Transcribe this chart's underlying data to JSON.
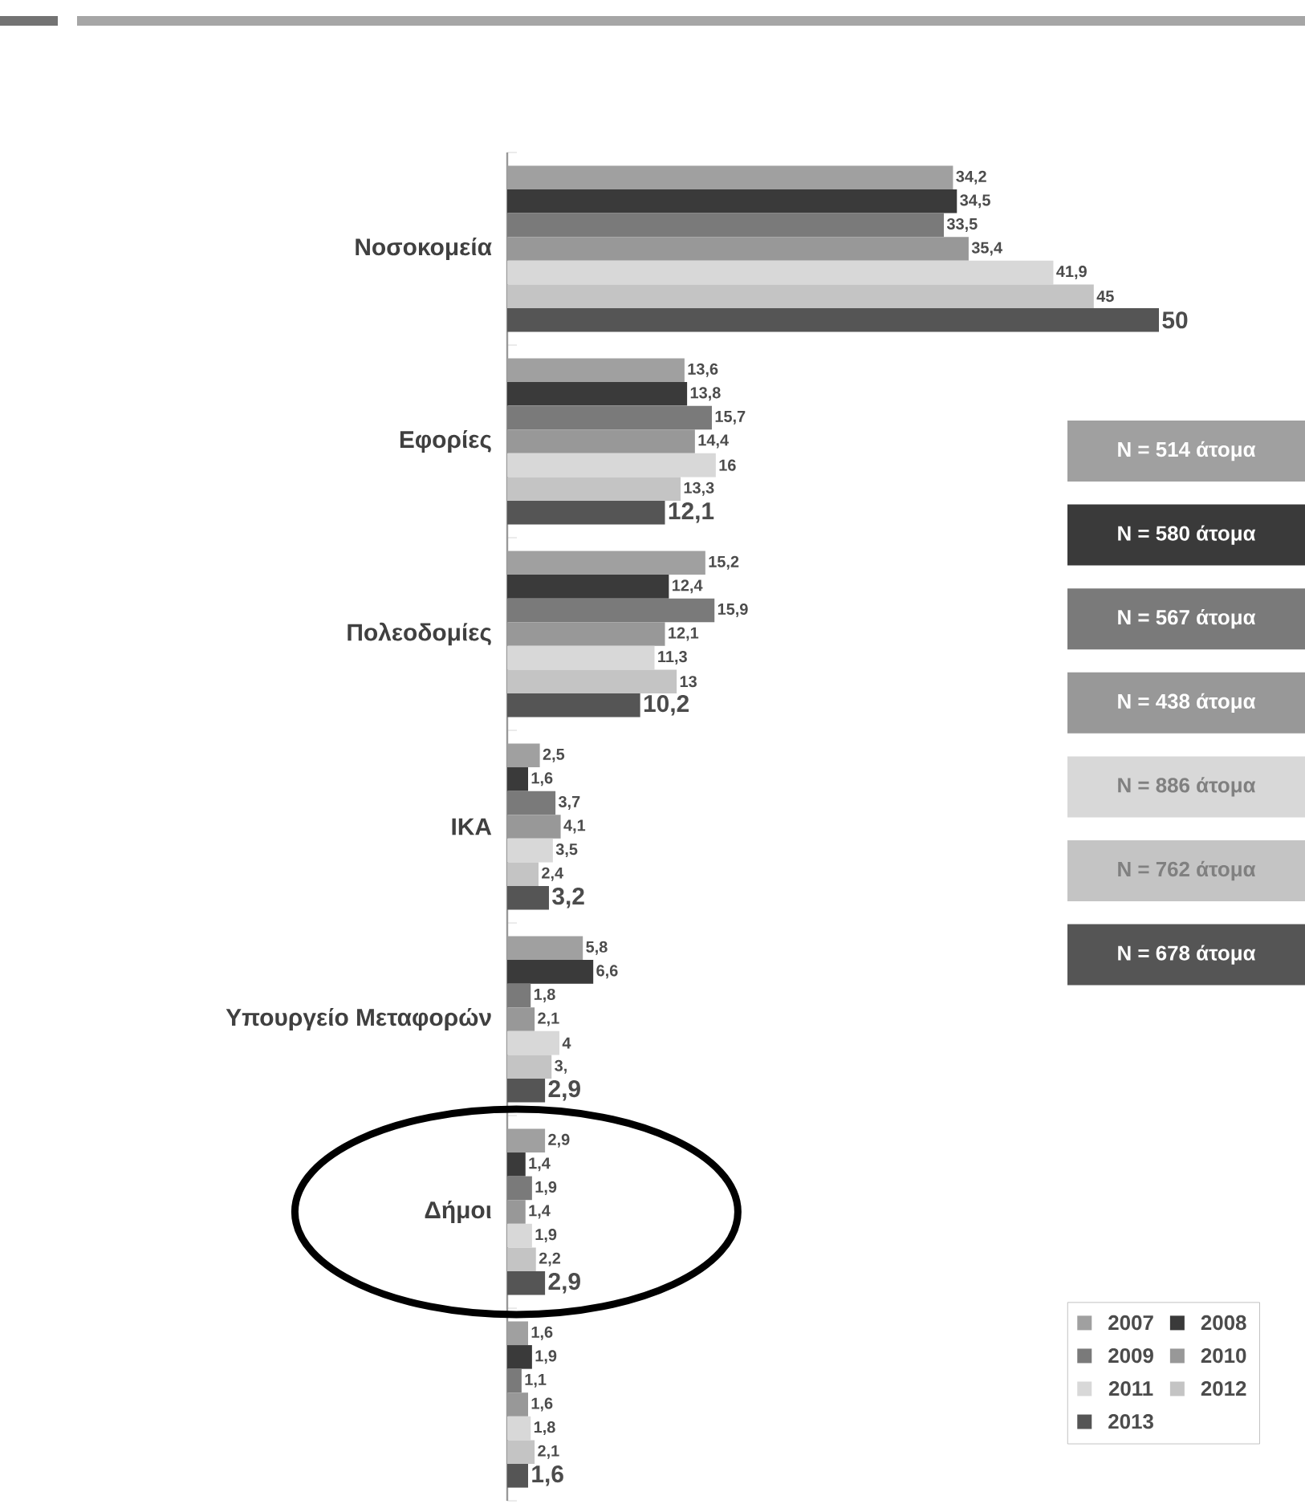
{
  "chart_data": {
    "type": "bar",
    "orientation": "horizontal",
    "legend": "bottom right",
    "categories": [
      "Νοσοκομεία",
      "Εφορίες",
      "Πολεοδομίες",
      "ΙΚΑ",
      "Υπουργείο Μεταφορών",
      "Δήμοι",
      null
    ],
    "series": [
      {
        "name": "2007",
        "color": "#a0a0a0",
        "values": [
          34.2,
          13.6,
          15.2,
          2.5,
          5.8,
          2.9,
          1.6
        ],
        "value_labels": [
          "34,2",
          "13,6",
          "15,2",
          "2,5",
          "5,8",
          "2,9",
          "1,6"
        ]
      },
      {
        "name": "2008",
        "color": "#3a3a3a",
        "values": [
          34.5,
          13.8,
          12.4,
          1.6,
          6.6,
          1.4,
          1.9
        ],
        "value_labels": [
          "34,5",
          "13,8",
          "12,4",
          "1,6",
          "6,6",
          "1,4",
          "1,9"
        ]
      },
      {
        "name": "2009",
        "color": "#7a7a7a",
        "values": [
          33.5,
          15.7,
          15.9,
          3.7,
          1.8,
          1.9,
          1.1
        ],
        "value_labels": [
          "33,5",
          "15,7",
          "15,9",
          "3,7",
          "1,8",
          "1,9",
          "1,1"
        ]
      },
      {
        "name": "2010",
        "color": "#989898",
        "values": [
          35.4,
          14.4,
          12.1,
          4.1,
          2.1,
          1.4,
          1.6
        ],
        "value_labels": [
          "35,4",
          "14,4",
          "12,1",
          "4,1",
          "2,1",
          "1,4",
          "1,6"
        ]
      },
      {
        "name": "2011",
        "color": "#d8d8d8",
        "values": [
          41.9,
          16,
          11.3,
          3.5,
          4,
          1.9,
          1.8
        ],
        "value_labels": [
          "41,9",
          "16",
          "11,3",
          "3,5",
          "4",
          "1,9",
          "1,8"
        ]
      },
      {
        "name": "2012",
        "color": "#c4c4c4",
        "values": [
          45,
          13.3,
          13,
          2.4,
          3.4,
          2.2,
          2.1
        ],
        "value_labels": [
          "45",
          "13,3",
          "13",
          "2,4",
          "3,",
          "2,2",
          "2,1"
        ]
      },
      {
        "name": "2013",
        "color": "#555555",
        "values": [
          50,
          12.1,
          10.2,
          3.2,
          2.9,
          2.9,
          1.6
        ],
        "value_labels": [
          "50",
          "12,1",
          "10,2",
          "3,2",
          "2,9",
          "2,9",
          "1,6"
        ]
      }
    ],
    "annotations": [
      "N = 514 άτομα",
      "N = 580 άτομα",
      "N = 567 άτομα",
      "N = 438 άτομα",
      "N = 886 άτομα",
      "N = 762 άτομα",
      "N = 678 άτομα"
    ]
  }
}
